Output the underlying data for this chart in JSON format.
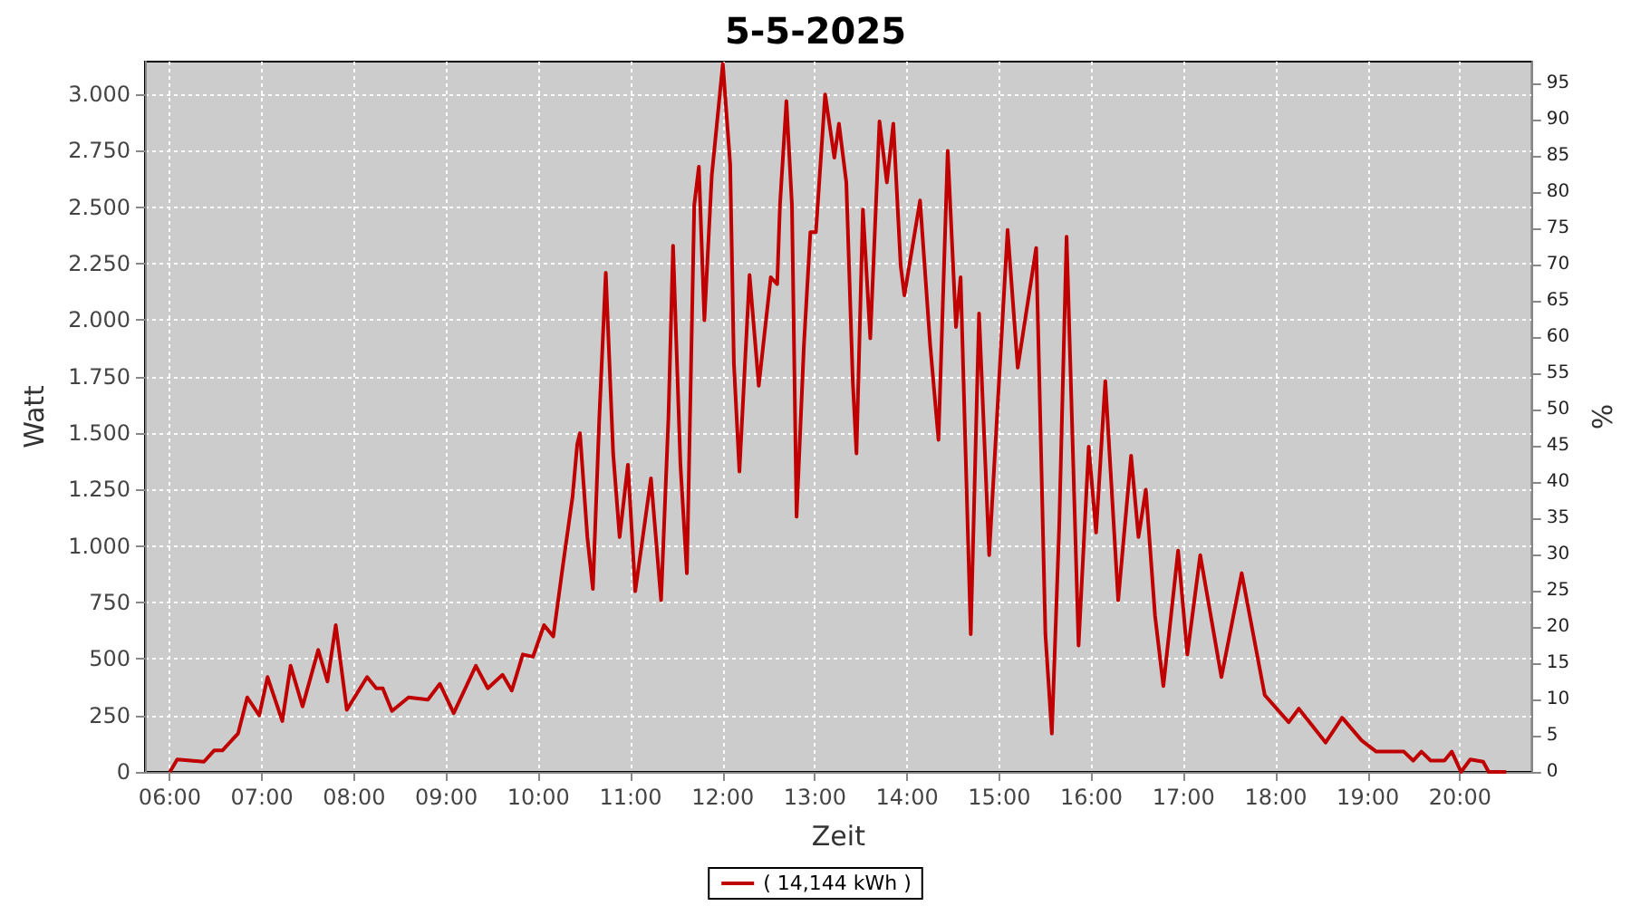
{
  "chart_data": {
    "type": "line",
    "title": "5-5-2025",
    "xlabel": "Zeit",
    "ylabel": "Watt",
    "y2label": "%",
    "xlim": [
      5.73,
      20.78
    ],
    "xticks": [
      {
        "value": 6,
        "label": "06:00"
      },
      {
        "value": 7,
        "label": "07:00"
      },
      {
        "value": 8,
        "label": "08:00"
      },
      {
        "value": 9,
        "label": "09:00"
      },
      {
        "value": 10,
        "label": "10:00"
      },
      {
        "value": 11,
        "label": "11:00"
      },
      {
        "value": 12,
        "label": "12:00"
      },
      {
        "value": 13,
        "label": "13:00"
      },
      {
        "value": 14,
        "label": "14:00"
      },
      {
        "value": 15,
        "label": "15:00"
      },
      {
        "value": 16,
        "label": "16:00"
      },
      {
        "value": 17,
        "label": "17:00"
      },
      {
        "value": 18,
        "label": "18:00"
      },
      {
        "value": 19,
        "label": "19:00"
      },
      {
        "value": 20,
        "label": "20:00"
      }
    ],
    "ylim": [
      0,
      3145
    ],
    "yticks": [
      0,
      250,
      500,
      750,
      {
        "value": 1000,
        "label": "1.000"
      },
      {
        "value": 1250,
        "label": "1.250"
      },
      {
        "value": 1500,
        "label": "1.500"
      },
      {
        "value": 1750,
        "label": "1.750"
      },
      {
        "value": 2000,
        "label": "2.000"
      },
      {
        "value": 2250,
        "label": "2.250"
      },
      {
        "value": 2500,
        "label": "2.500"
      },
      {
        "value": 2750,
        "label": "2.750"
      },
      {
        "value": 3000,
        "label": "3.000"
      }
    ],
    "y2lim": [
      0,
      98
    ],
    "y2ticks": [
      0,
      5,
      10,
      15,
      20,
      25,
      30,
      35,
      40,
      45,
      50,
      55,
      60,
      65,
      70,
      75,
      80,
      85,
      90,
      95
    ],
    "grid": true,
    "legend": "bottom",
    "marker": "none",
    "line_style": "solid",
    "series": [
      {
        "name": "( 14,144 kWh )",
        "color": "#c00000",
        "x": [
          6.0,
          6.08,
          6.37,
          6.48,
          6.57,
          6.74,
          6.84,
          6.97,
          7.06,
          7.22,
          7.31,
          7.44,
          7.61,
          7.71,
          7.8,
          7.92,
          8.14,
          8.24,
          8.31,
          8.41,
          8.59,
          8.8,
          8.93,
          9.08,
          9.32,
          9.45,
          9.61,
          9.71,
          9.83,
          9.94,
          10.06,
          10.16,
          10.27,
          10.37,
          10.42,
          10.45,
          10.53,
          10.59,
          10.66,
          10.73,
          10.81,
          10.88,
          10.97,
          11.05,
          11.22,
          11.33,
          11.41,
          11.46,
          11.54,
          11.61,
          11.69,
          11.74,
          11.8,
          11.88,
          12.0,
          12.08,
          12.12,
          12.18,
          12.29,
          12.39,
          12.52,
          12.59,
          12.62,
          12.69,
          12.75,
          12.8,
          12.88,
          12.95,
          13.01,
          13.11,
          13.21,
          13.26,
          13.34,
          13.41,
          13.45,
          13.52,
          13.6,
          13.7,
          13.78,
          13.85,
          13.93,
          13.97,
          14.14,
          14.25,
          14.34,
          14.44,
          14.53,
          14.58,
          14.69,
          14.78,
          14.89,
          15.09,
          15.2,
          15.4,
          15.5,
          15.57,
          15.65,
          15.73,
          15.86,
          15.97,
          16.05,
          16.15,
          16.29,
          16.43,
          16.51,
          16.59,
          16.69,
          16.78,
          16.94,
          17.04,
          17.18,
          17.41,
          17.63,
          17.88,
          18.14,
          18.25,
          18.54,
          18.72,
          18.93,
          19.09,
          19.39,
          19.49,
          19.58,
          19.68,
          19.83,
          19.91,
          20.01,
          20.11,
          20.25,
          20.31,
          20.5
        ],
        "values": [
          0,
          55,
          45,
          95,
          95,
          170,
          330,
          250,
          420,
          225,
          470,
          290,
          540,
          400,
          650,
          275,
          420,
          370,
          370,
          270,
          330,
          320,
          390,
          260,
          470,
          370,
          430,
          360,
          520,
          510,
          650,
          600,
          930,
          1220,
          1450,
          1500,
          1040,
          810,
          1570,
          2210,
          1410,
          1040,
          1360,
          800,
          1300,
          760,
          1570,
          2330,
          1360,
          880,
          2510,
          2680,
          2000,
          2640,
          3135,
          2690,
          1810,
          1330,
          2200,
          1710,
          2190,
          2160,
          2510,
          2970,
          2510,
          1130,
          1890,
          2390,
          2390,
          3000,
          2720,
          2870,
          2610,
          1730,
          1410,
          2490,
          1920,
          2880,
          2610,
          2870,
          2240,
          2110,
          2530,
          1890,
          1470,
          2750,
          1970,
          2190,
          610,
          2030,
          960,
          2400,
          1790,
          2320,
          610,
          170,
          1090,
          2370,
          560,
          1440,
          1060,
          1730,
          760,
          1400,
          1040,
          1250,
          690,
          380,
          980,
          520,
          960,
          420,
          880,
          340,
          220,
          280,
          130,
          240,
          140,
          90,
          90,
          50,
          90,
          50,
          50,
          90,
          0,
          55,
          45,
          0,
          0
        ]
      }
    ]
  }
}
